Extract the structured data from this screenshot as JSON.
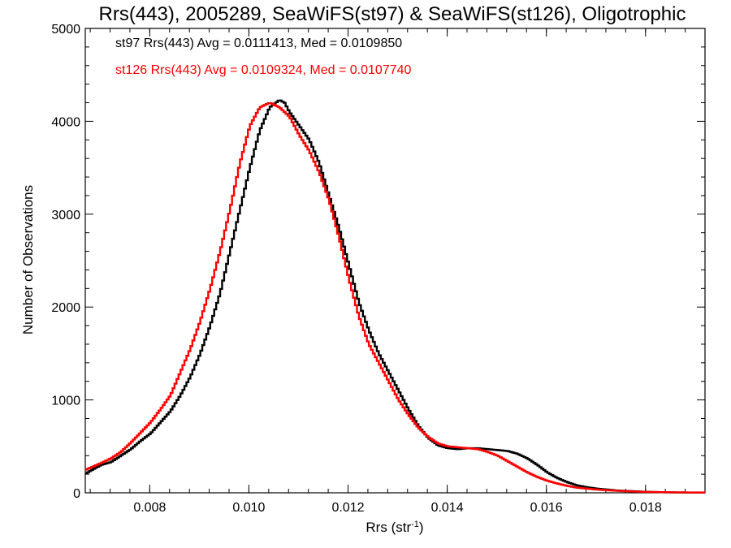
{
  "chart_data": {
    "type": "line",
    "title": "Rrs(443), 2005289, SeaWiFS(st97) & SeaWiFS(st126), Oligotrophic",
    "xlabel_main": "Rrs (str",
    "xlabel_sup": "-1",
    "xlabel_close": ")",
    "ylabel": "Number of Observations",
    "xlim": [
      0.0067,
      0.0192
    ],
    "ylim": [
      0,
      5000
    ],
    "x_ticks": [
      "0.008",
      "0.010",
      "0.012",
      "0.014",
      "0.016",
      "0.018"
    ],
    "y_ticks": [
      "0",
      "1000",
      "2000",
      "3000",
      "4000",
      "5000"
    ],
    "grid": false,
    "annotations": {
      "st97": "st97 Rrs(443) Avg = 0.0111413, Med = 0.0109850",
      "st126": "st126 Rrs(443) Avg = 0.0109324, Med = 0.0107740"
    },
    "series": [
      {
        "color": "#000000",
        "points": [
          [
            0.0067,
            210
          ],
          [
            0.007,
            300
          ],
          [
            0.0072,
            330
          ],
          [
            0.0074,
            400
          ],
          [
            0.0076,
            470
          ],
          [
            0.0078,
            560
          ],
          [
            0.008,
            640
          ],
          [
            0.0082,
            760
          ],
          [
            0.0084,
            880
          ],
          [
            0.0086,
            1050
          ],
          [
            0.0088,
            1250
          ],
          [
            0.009,
            1500
          ],
          [
            0.0092,
            1800
          ],
          [
            0.0094,
            2150
          ],
          [
            0.0096,
            2600
          ],
          [
            0.0098,
            3050
          ],
          [
            0.01,
            3500
          ],
          [
            0.0102,
            3900
          ],
          [
            0.0104,
            4150
          ],
          [
            0.0106,
            4230
          ],
          [
            0.0107,
            4200
          ],
          [
            0.0108,
            4100
          ],
          [
            0.011,
            3950
          ],
          [
            0.0112,
            3800
          ],
          [
            0.0114,
            3550
          ],
          [
            0.0116,
            3200
          ],
          [
            0.0118,
            2850
          ],
          [
            0.012,
            2450
          ],
          [
            0.0122,
            2050
          ],
          [
            0.0124,
            1750
          ],
          [
            0.0126,
            1500
          ],
          [
            0.0128,
            1300
          ],
          [
            0.013,
            1100
          ],
          [
            0.0132,
            900
          ],
          [
            0.0134,
            720
          ],
          [
            0.0136,
            590
          ],
          [
            0.0138,
            510
          ],
          [
            0.014,
            480
          ],
          [
            0.0142,
            470
          ],
          [
            0.0144,
            480
          ],
          [
            0.0146,
            480
          ],
          [
            0.0148,
            470
          ],
          [
            0.015,
            460
          ],
          [
            0.0152,
            450
          ],
          [
            0.0154,
            420
          ],
          [
            0.0156,
            370
          ],
          [
            0.0158,
            300
          ],
          [
            0.016,
            220
          ],
          [
            0.0162,
            160
          ],
          [
            0.0164,
            115
          ],
          [
            0.0166,
            80
          ],
          [
            0.0168,
            60
          ],
          [
            0.017,
            45
          ],
          [
            0.0172,
            35
          ],
          [
            0.0174,
            25
          ],
          [
            0.0176,
            20
          ],
          [
            0.0178,
            15
          ],
          [
            0.018,
            10
          ],
          [
            0.0184,
            5
          ],
          [
            0.0188,
            3
          ],
          [
            0.0192,
            2
          ]
        ]
      },
      {
        "color": "#ff0000",
        "points": [
          [
            0.0067,
            250
          ],
          [
            0.007,
            320
          ],
          [
            0.0072,
            370
          ],
          [
            0.0074,
            440
          ],
          [
            0.0076,
            540
          ],
          [
            0.0078,
            650
          ],
          [
            0.008,
            760
          ],
          [
            0.0082,
            900
          ],
          [
            0.0084,
            1050
          ],
          [
            0.0086,
            1300
          ],
          [
            0.0088,
            1550
          ],
          [
            0.009,
            1850
          ],
          [
            0.0092,
            2200
          ],
          [
            0.0094,
            2600
          ],
          [
            0.0096,
            3050
          ],
          [
            0.0098,
            3550
          ],
          [
            0.01,
            3950
          ],
          [
            0.0102,
            4150
          ],
          [
            0.0104,
            4200
          ],
          [
            0.0106,
            4150
          ],
          [
            0.0108,
            4050
          ],
          [
            0.011,
            3850
          ],
          [
            0.0112,
            3680
          ],
          [
            0.0114,
            3450
          ],
          [
            0.0116,
            3150
          ],
          [
            0.0118,
            2750
          ],
          [
            0.012,
            2300
          ],
          [
            0.0122,
            1900
          ],
          [
            0.0124,
            1600
          ],
          [
            0.0126,
            1400
          ],
          [
            0.0128,
            1200
          ],
          [
            0.013,
            1000
          ],
          [
            0.0132,
            840
          ],
          [
            0.0134,
            700
          ],
          [
            0.0136,
            600
          ],
          [
            0.0138,
            530
          ],
          [
            0.014,
            500
          ],
          [
            0.0142,
            490
          ],
          [
            0.0144,
            480
          ],
          [
            0.0146,
            470
          ],
          [
            0.0148,
            440
          ],
          [
            0.015,
            400
          ],
          [
            0.0152,
            340
          ],
          [
            0.0154,
            280
          ],
          [
            0.0156,
            220
          ],
          [
            0.0158,
            170
          ],
          [
            0.016,
            130
          ],
          [
            0.0162,
            100
          ],
          [
            0.0164,
            75
          ],
          [
            0.0166,
            55
          ],
          [
            0.0168,
            45
          ],
          [
            0.017,
            35
          ],
          [
            0.0172,
            28
          ],
          [
            0.0174,
            22
          ],
          [
            0.0176,
            17
          ],
          [
            0.0178,
            13
          ],
          [
            0.018,
            10
          ],
          [
            0.0184,
            6
          ],
          [
            0.0188,
            4
          ],
          [
            0.0192,
            3
          ]
        ]
      }
    ]
  }
}
